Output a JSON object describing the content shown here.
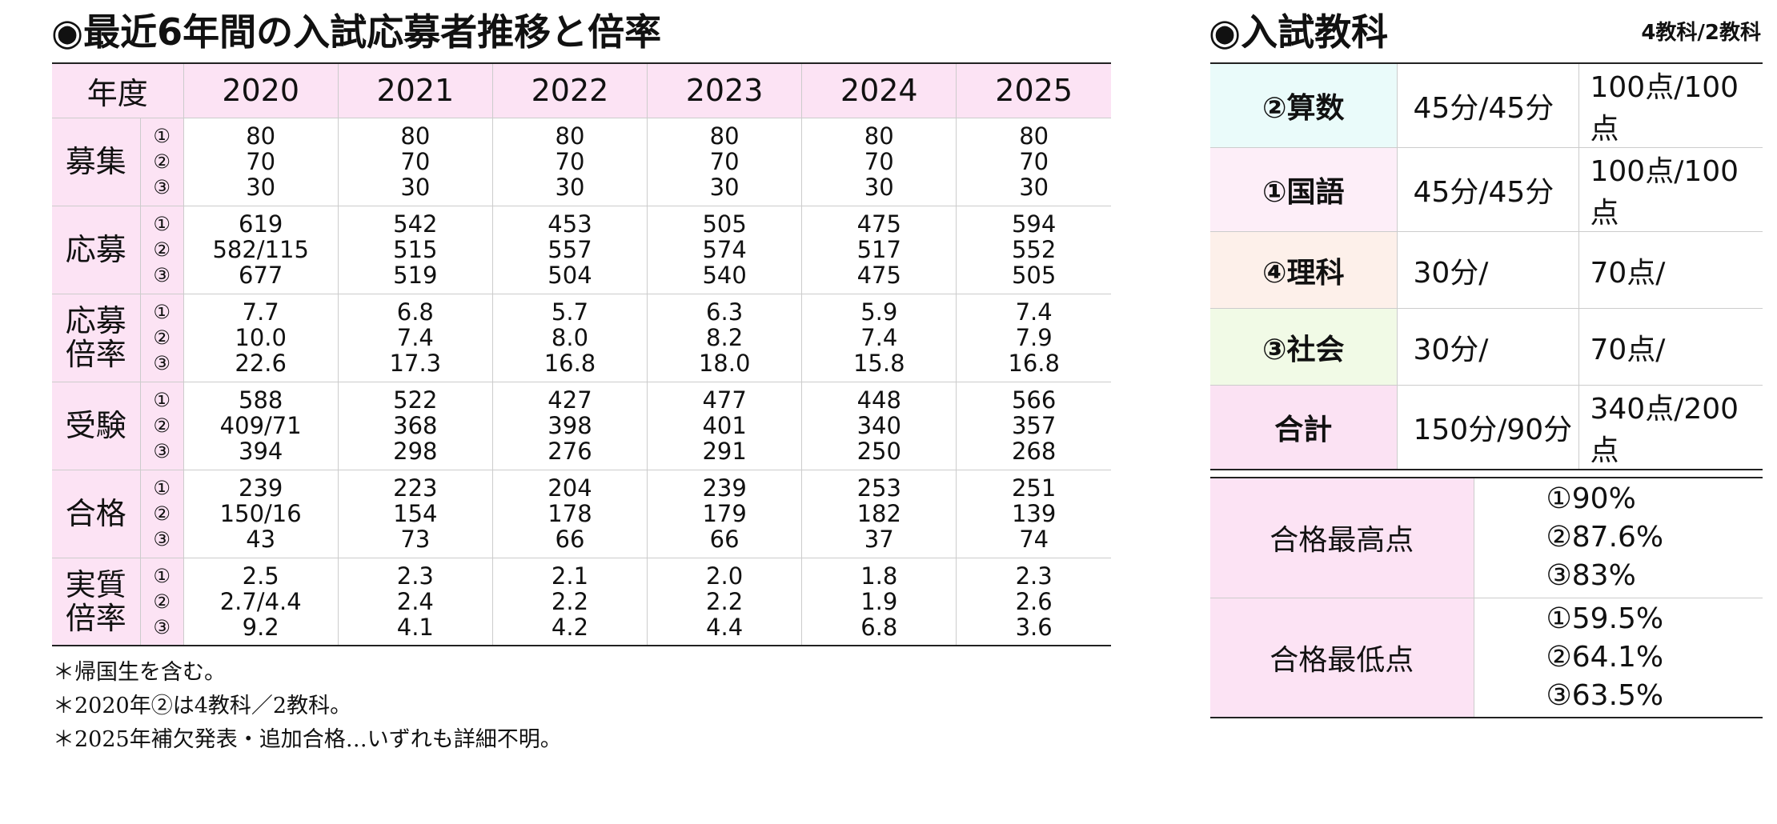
{
  "left": {
    "title": "◉最近6年間の入試応募者推移と倍率",
    "header": [
      "年度",
      "2020",
      "2021",
      "2022",
      "2023",
      "2024",
      "2025"
    ],
    "rows": [
      {
        "label": [
          "募集"
        ],
        "markers": [
          "①",
          "②",
          "③"
        ],
        "cells": [
          [
            "80",
            "70",
            "30"
          ],
          [
            "80",
            "70",
            "30"
          ],
          [
            "80",
            "70",
            "30"
          ],
          [
            "80",
            "70",
            "30"
          ],
          [
            "80",
            "70",
            "30"
          ],
          [
            "80",
            "70",
            "30"
          ]
        ]
      },
      {
        "label": [
          "応募"
        ],
        "markers": [
          "①",
          "②",
          "③"
        ],
        "cells": [
          [
            "619",
            "582/115",
            "677"
          ],
          [
            "542",
            "515",
            "519"
          ],
          [
            "453",
            "557",
            "504"
          ],
          [
            "505",
            "574",
            "540"
          ],
          [
            "475",
            "517",
            "475"
          ],
          [
            "594",
            "552",
            "505"
          ]
        ]
      },
      {
        "label": [
          "応募",
          "倍率"
        ],
        "markers": [
          "①",
          "②",
          "③"
        ],
        "cells": [
          [
            "7.7",
            "10.0",
            "22.6"
          ],
          [
            "6.8",
            "7.4",
            "17.3"
          ],
          [
            "5.7",
            "8.0",
            "16.8"
          ],
          [
            "6.3",
            "8.2",
            "18.0"
          ],
          [
            "5.9",
            "7.4",
            "15.8"
          ],
          [
            "7.4",
            "7.9",
            "16.8"
          ]
        ]
      },
      {
        "label": [
          "受験"
        ],
        "markers": [
          "①",
          "②",
          "③"
        ],
        "cells": [
          [
            "588",
            "409/71",
            "394"
          ],
          [
            "522",
            "368",
            "298"
          ],
          [
            "427",
            "398",
            "276"
          ],
          [
            "477",
            "401",
            "291"
          ],
          [
            "448",
            "340",
            "250"
          ],
          [
            "566",
            "357",
            "268"
          ]
        ]
      },
      {
        "label": [
          "合格"
        ],
        "markers": [
          "①",
          "②",
          "③"
        ],
        "cells": [
          [
            "239",
            "150/16",
            "43"
          ],
          [
            "223",
            "154",
            "73"
          ],
          [
            "204",
            "178",
            "66"
          ],
          [
            "239",
            "179",
            "66"
          ],
          [
            "253",
            "182",
            "37"
          ],
          [
            "251",
            "139",
            "74"
          ]
        ]
      },
      {
        "label": [
          "実質",
          "倍率"
        ],
        "markers": [
          "①",
          "②",
          "③"
        ],
        "cells": [
          [
            "2.5",
            "2.7/4.4",
            "9.2"
          ],
          [
            "2.3",
            "2.4",
            "4.1"
          ],
          [
            "2.1",
            "2.2",
            "4.2"
          ],
          [
            "2.0",
            "2.2",
            "4.4"
          ],
          [
            "1.8",
            "1.9",
            "6.8"
          ],
          [
            "2.3",
            "2.6",
            "3.6"
          ]
        ]
      }
    ],
    "notes": [
      "＊帰国生を含む。",
      "＊2020年②は4教科／2教科。",
      "＊2025年補欠発表・追加合格…いずれも詳細不明。"
    ]
  },
  "right": {
    "title": "◉入試教科",
    "subtitle": "4教科/2教科",
    "subjects": [
      {
        "name": "②算数",
        "time": "45分/45分",
        "points": "100点/100点",
        "color": "#eafbfa"
      },
      {
        "name": "①国語",
        "time": "45分/45分",
        "points": "100点/100点",
        "color": "#fdeef8"
      },
      {
        "name": "④理科",
        "time": "30分/",
        "points": "70点/",
        "color": "#fdf0ea"
      },
      {
        "name": "③社会",
        "time": "30分/",
        "points": "70点/",
        "color": "#f1fae6"
      },
      {
        "name": "合計",
        "time": "150分/90分",
        "points": "340点/200点",
        "color": "#fbe2f3"
      }
    ],
    "scores": [
      {
        "label": "合格最高点",
        "lines": [
          "①90%",
          "②87.6%",
          "③83%"
        ]
      },
      {
        "label": "合格最低点",
        "lines": [
          "①59.5%",
          "②64.1%",
          "③63.5%"
        ]
      }
    ]
  }
}
